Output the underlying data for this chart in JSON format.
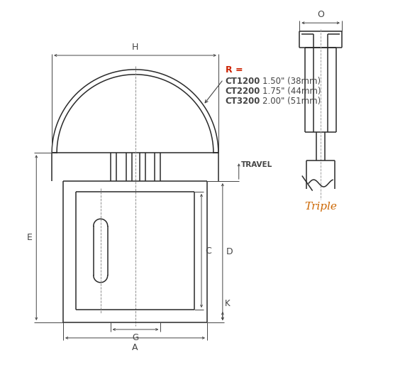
{
  "bg_color": "#ffffff",
  "line_color": "#2a2a2a",
  "dim_color": "#444444",
  "red_text_color": "#cc2200",
  "orange_text_color": "#cc6600",
  "R_label": "R =",
  "R_lines": [
    [
      "CT1200",
      "1.50\" (38mm)"
    ],
    [
      "CT2200",
      "1.75\" (44mm)"
    ],
    [
      "CT3200",
      "2.00\" (51mm)"
    ]
  ],
  "dim_labels": {
    "H": "H",
    "E": "E",
    "A": "A",
    "G": "G",
    "C": "C",
    "D": "D",
    "K": "K",
    "TRAVEL": "TRAVEL",
    "O": "O"
  },
  "triple_label": "Triple"
}
